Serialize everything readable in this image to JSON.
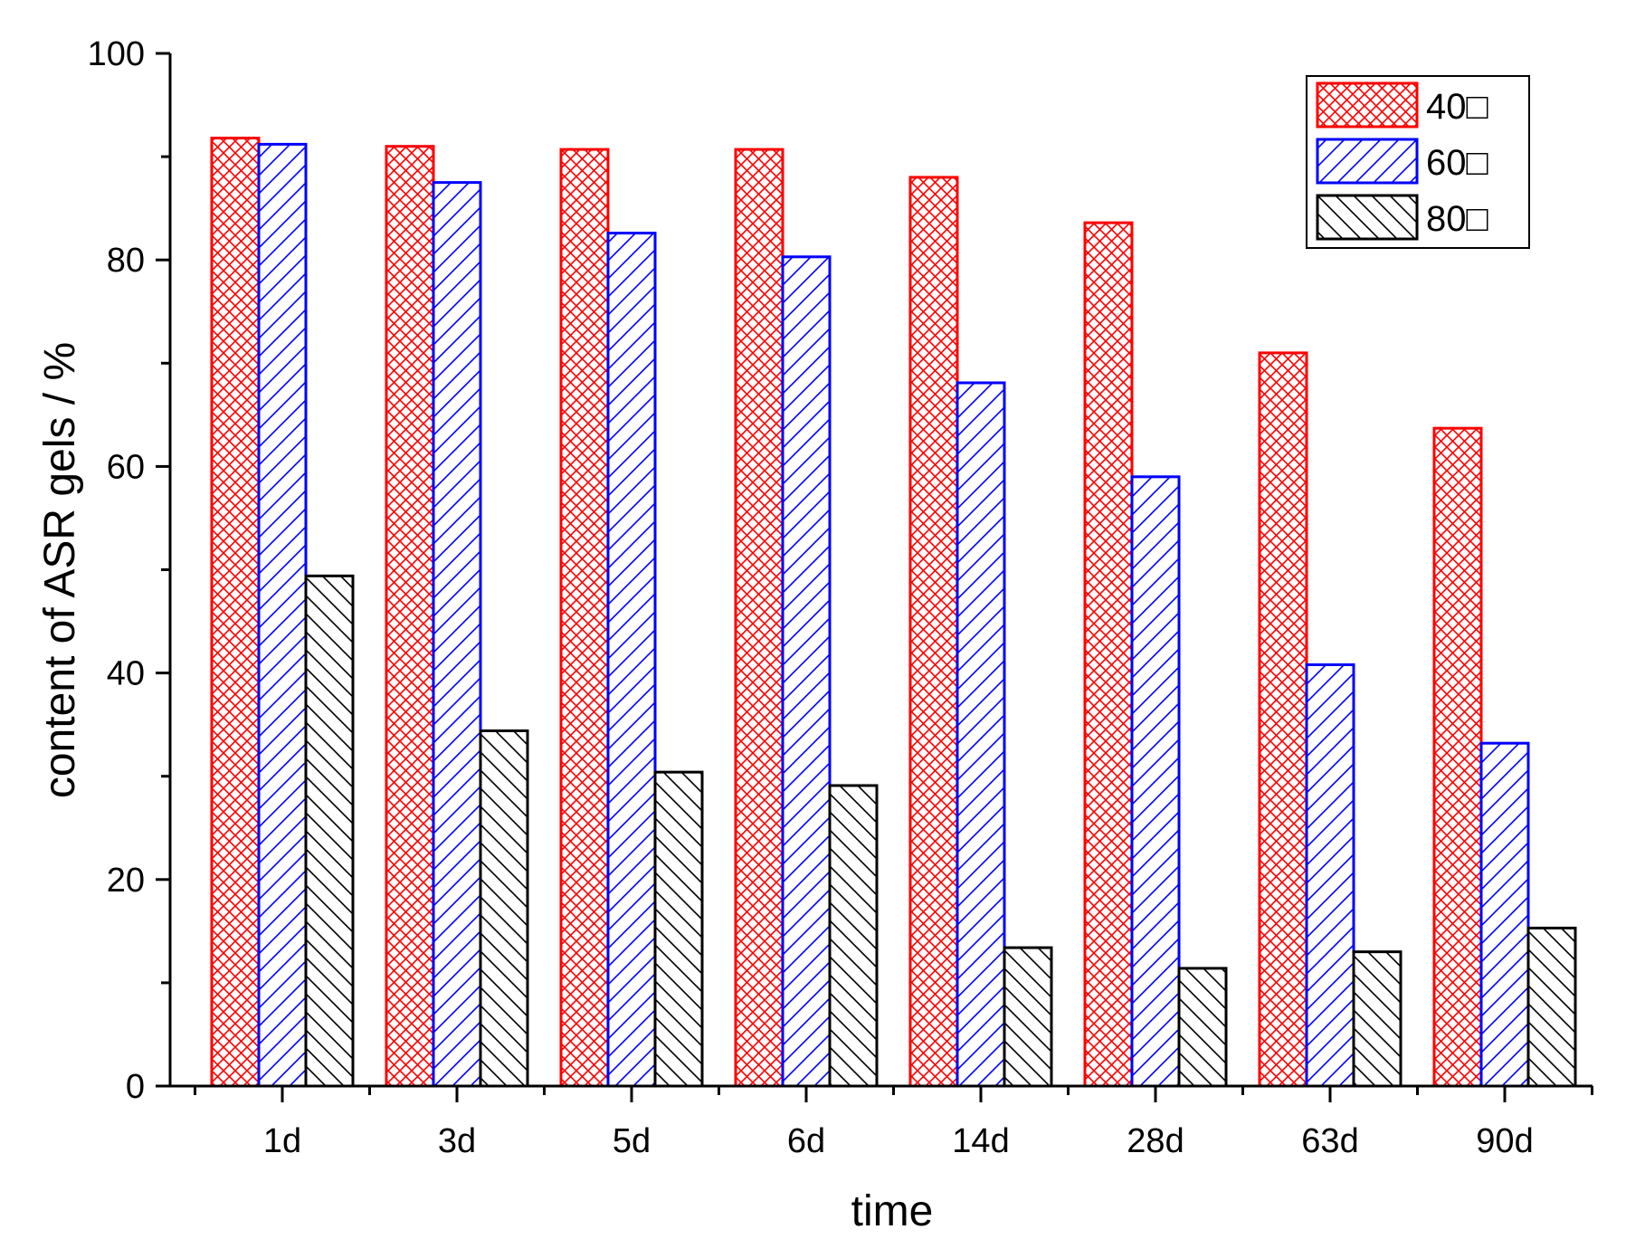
{
  "chart_data": {
    "type": "bar",
    "title": "",
    "xlabel": "time",
    "ylabel": "content of ASR gels / %",
    "ylim": [
      0,
      100
    ],
    "yticks": [
      "0",
      "20",
      "40",
      "60",
      "80",
      "100"
    ],
    "categories": [
      "1d",
      "3d",
      "5d",
      "6d",
      "14d",
      "28d",
      "63d",
      "90d"
    ],
    "series": [
      {
        "name": "40□",
        "color": "#ff0000",
        "pattern": "crosshatch",
        "values": [
          91.8,
          91.0,
          90.7,
          90.7,
          88.0,
          83.6,
          71.0,
          63.7
        ]
      },
      {
        "name": "60□",
        "color": "#0000ff",
        "pattern": "forward-diagonal",
        "values": [
          91.2,
          87.5,
          82.6,
          80.3,
          68.1,
          59.0,
          40.8,
          33.2
        ]
      },
      {
        "name": "80□",
        "color": "#000000",
        "pattern": "backward-diagonal",
        "values": [
          49.4,
          34.4,
          30.4,
          29.1,
          13.4,
          11.4,
          13.0,
          15.3
        ]
      }
    ],
    "grid": false,
    "legend_position": "top-right"
  }
}
